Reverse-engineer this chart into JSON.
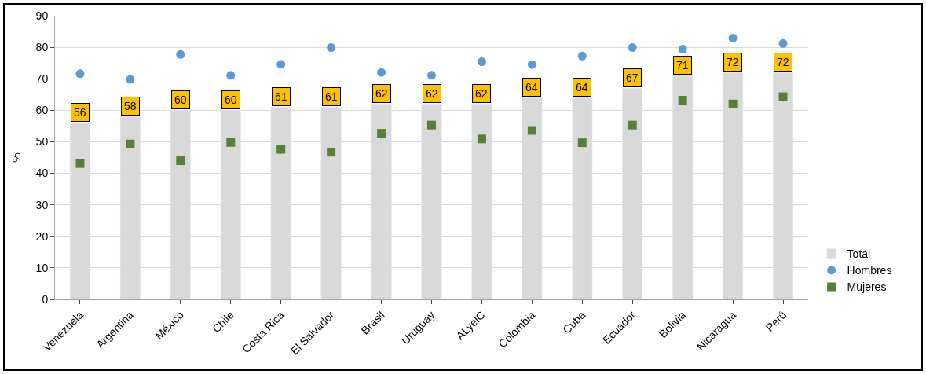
{
  "chart_data": {
    "type": "bar",
    "ylabel": "%",
    "categories": [
      "Venezuela",
      "Argentina",
      "México",
      "Chile",
      "Costa Rica",
      "El Salvador",
      "Brasil",
      "Uruguay",
      "ALyelC",
      "Colombia",
      "Cuba",
      "Ecuador",
      "Bolivia",
      "Nicaragua",
      "Perú"
    ],
    "series": [
      {
        "name": "Total",
        "color": "#d9d9d9",
        "data_labels": true,
        "values": [
          56,
          58,
          60,
          60,
          61,
          61,
          62,
          62,
          62,
          64,
          64,
          67,
          71,
          72,
          72
        ]
      },
      {
        "name": "Hombres",
        "type": "scatter",
        "marker": "circle",
        "color": "#5b9bd5",
        "values": [
          71.6,
          69.8,
          77.7,
          71.1,
          74.6,
          79.9,
          72.0,
          71.1,
          75.4,
          74.5,
          77.2,
          79.9,
          79.4,
          82.9,
          81.2
        ]
      },
      {
        "name": "Mujeres",
        "type": "scatter",
        "marker": "square",
        "color": "#548235",
        "values": [
          43.1,
          49.3,
          44.0,
          49.8,
          47.6,
          46.7,
          52.7,
          55.3,
          50.9,
          53.6,
          49.7,
          55.3,
          63.2,
          62.0,
          64.3
        ]
      }
    ],
    "ylim": [
      0,
      90
    ],
    "yticks": [
      0,
      10,
      20,
      30,
      40,
      50,
      60,
      70,
      80,
      90
    ],
    "grid": "y",
    "legend": "right"
  }
}
